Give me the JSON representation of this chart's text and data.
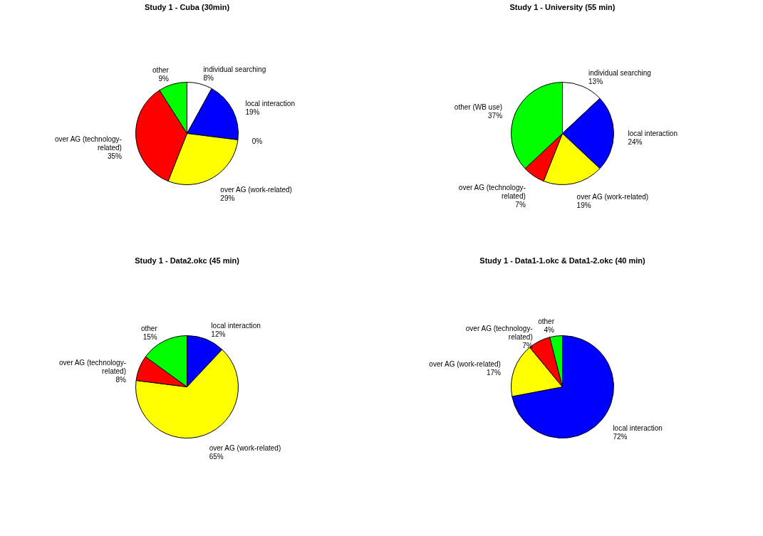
{
  "chart_data": [
    {
      "type": "pie",
      "title": "Study 1 - Cuba (30min)",
      "categories": [
        "individual searching",
        "local interaction",
        null,
        "over AG (work-related)",
        "over AG (technology-related)",
        "other"
      ],
      "values": [
        8,
        19,
        0,
        29,
        35,
        9
      ],
      "value_labels": [
        "8%",
        "19%",
        "0%",
        "29%",
        "35%",
        "9%"
      ],
      "colors": [
        "#ffffff",
        "#0000ff",
        "#00ffff",
        "#ffff00",
        "#ff0000",
        "#00ff00"
      ]
    },
    {
      "type": "pie",
      "title": "Study 1 - University (55 min)",
      "categories": [
        "individual searching",
        "local interaction",
        "over AG (work-related)",
        "over AG (technology-related)",
        "other (WB use)"
      ],
      "values": [
        13,
        24,
        19,
        7,
        37
      ],
      "value_labels": [
        "13%",
        "24%",
        "19%",
        "7%",
        "37%"
      ],
      "colors": [
        "#ffffff",
        "#0000ff",
        "#ffff00",
        "#ff0000",
        "#00ff00"
      ]
    },
    {
      "type": "pie",
      "title": "Study 1 - Data2.okc (45 min)",
      "categories": [
        "local interaction",
        "over AG (work-related)",
        "over AG (technology-related)",
        "other"
      ],
      "values": [
        12,
        65,
        8,
        15
      ],
      "value_labels": [
        "12%",
        "65%",
        "8%",
        "15%"
      ],
      "colors": [
        "#0000ff",
        "#ffff00",
        "#ff0000",
        "#00ff00"
      ]
    },
    {
      "type": "pie",
      "title": "Study 1 - Data1-1.okc & Data1-2.okc (40 min)",
      "categories": [
        "local interaction",
        "over AG (work-related)",
        "over AG (technology-related)",
        "other"
      ],
      "values": [
        72,
        17,
        7,
        4
      ],
      "value_labels": [
        "72%",
        "17%",
        "7%",
        "4%"
      ],
      "colors": [
        "#0000ff",
        "#ffff00",
        "#ff0000",
        "#00ff00"
      ]
    }
  ]
}
